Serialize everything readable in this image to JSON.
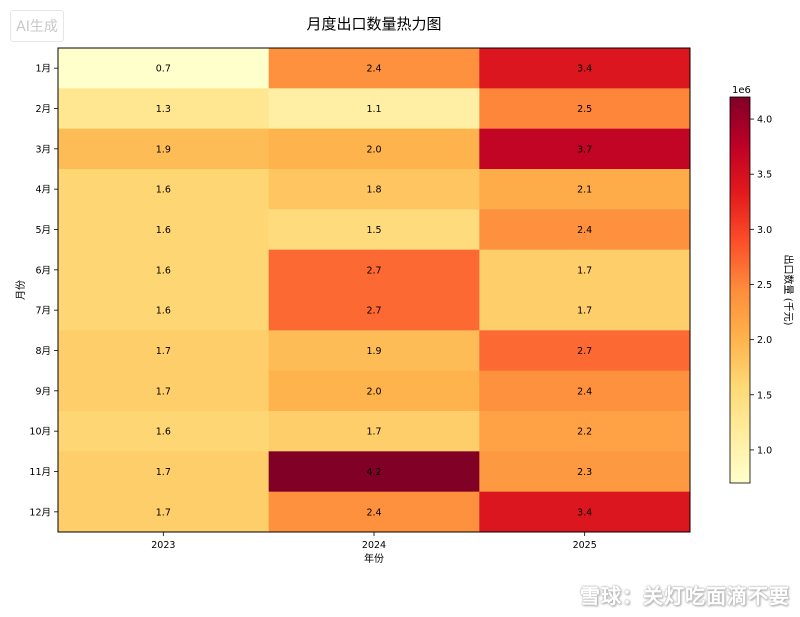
{
  "badge_text": "AI生成",
  "watermark_text": "雪球：关灯吃面滴不要",
  "chart_data": {
    "type": "heatmap",
    "title": "月度出口数量热力图",
    "xlabel": "年份",
    "ylabel": "月份",
    "x_categories": [
      "2023",
      "2024",
      "2025"
    ],
    "y_categories": [
      "1月",
      "2月",
      "3月",
      "4月",
      "5月",
      "6月",
      "7月",
      "8月",
      "9月",
      "10月",
      "11月",
      "12月"
    ],
    "values": [
      [
        0.7,
        2.4,
        3.4
      ],
      [
        1.3,
        1.1,
        2.5
      ],
      [
        1.9,
        2.0,
        3.7
      ],
      [
        1.6,
        1.8,
        2.1
      ],
      [
        1.6,
        1.5,
        2.4
      ],
      [
        1.6,
        2.7,
        1.7
      ],
      [
        1.6,
        2.7,
        1.7
      ],
      [
        1.7,
        1.9,
        2.7
      ],
      [
        1.7,
        2.0,
        2.4
      ],
      [
        1.6,
        1.7,
        2.2
      ],
      [
        1.7,
        4.2,
        2.3
      ],
      [
        1.7,
        2.4,
        3.4
      ]
    ],
    "colorbar": {
      "label": "出口数量 (千元)",
      "offset_text": "1e6",
      "range": [
        0.7,
        4.2
      ],
      "ticks": [
        1.0,
        1.5,
        2.0,
        2.5,
        3.0,
        3.5,
        4.0
      ],
      "tick_labels": [
        "1.0",
        "1.5",
        "2.0",
        "2.5",
        "3.0",
        "3.5",
        "4.0"
      ],
      "colormap": "YlOrRd"
    }
  }
}
